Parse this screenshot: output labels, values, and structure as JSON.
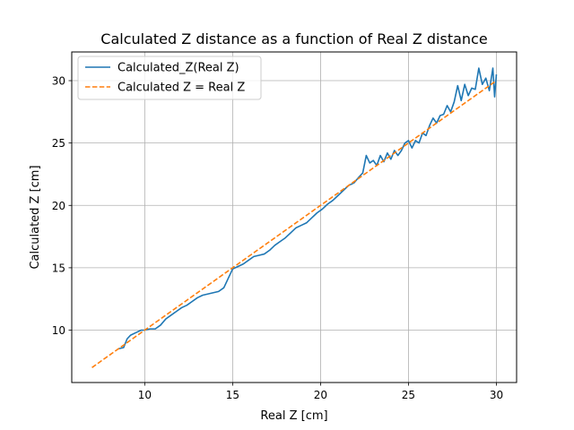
{
  "chart_data": {
    "type": "line",
    "title": "Calculated Z distance as a function of Real Z distance",
    "xlabel": "Real Z [cm]",
    "ylabel": "Calculated Z [cm]",
    "xlim": [
      5.85,
      31.15
    ],
    "ylim": [
      5.8,
      32.3
    ],
    "xticks": [
      10,
      15,
      20,
      25,
      30
    ],
    "yticks": [
      10,
      15,
      20,
      25,
      30
    ],
    "grid": true,
    "legend_position": "upper-left",
    "series": [
      {
        "name": "Calculated_Z(Real Z)",
        "color": "#1f77b4",
        "style": "solid",
        "points": [
          [
            8.5,
            8.5
          ],
          [
            8.8,
            8.6
          ],
          [
            9.0,
            9.3
          ],
          [
            9.2,
            9.6
          ],
          [
            9.5,
            9.8
          ],
          [
            9.8,
            10.0
          ],
          [
            10.0,
            10.0
          ],
          [
            10.3,
            10.1
          ],
          [
            10.6,
            10.1
          ],
          [
            10.9,
            10.4
          ],
          [
            11.2,
            10.9
          ],
          [
            11.5,
            11.2
          ],
          [
            11.8,
            11.5
          ],
          [
            12.1,
            11.8
          ],
          [
            12.4,
            12.0
          ],
          [
            12.7,
            12.3
          ],
          [
            13.0,
            12.6
          ],
          [
            13.3,
            12.8
          ],
          [
            13.6,
            12.9
          ],
          [
            13.9,
            13.0
          ],
          [
            14.2,
            13.1
          ],
          [
            14.5,
            13.4
          ],
          [
            14.7,
            14.0
          ],
          [
            14.9,
            14.6
          ],
          [
            15.0,
            14.9
          ],
          [
            15.3,
            15.1
          ],
          [
            15.6,
            15.3
          ],
          [
            15.9,
            15.6
          ],
          [
            16.2,
            15.9
          ],
          [
            16.5,
            16.0
          ],
          [
            16.8,
            16.1
          ],
          [
            17.1,
            16.4
          ],
          [
            17.4,
            16.8
          ],
          [
            17.7,
            17.1
          ],
          [
            18.0,
            17.4
          ],
          [
            18.3,
            17.8
          ],
          [
            18.6,
            18.2
          ],
          [
            18.9,
            18.4
          ],
          [
            19.2,
            18.6
          ],
          [
            19.5,
            19.0
          ],
          [
            19.8,
            19.4
          ],
          [
            20.1,
            19.7
          ],
          [
            20.4,
            20.1
          ],
          [
            20.7,
            20.4
          ],
          [
            21.0,
            20.8
          ],
          [
            21.3,
            21.2
          ],
          [
            21.6,
            21.6
          ],
          [
            21.9,
            21.8
          ],
          [
            22.2,
            22.3
          ],
          [
            22.4,
            22.6
          ],
          [
            22.6,
            24.0
          ],
          [
            22.8,
            23.4
          ],
          [
            23.0,
            23.6
          ],
          [
            23.2,
            23.2
          ],
          [
            23.4,
            24.0
          ],
          [
            23.6,
            23.5
          ],
          [
            23.8,
            24.2
          ],
          [
            24.0,
            23.7
          ],
          [
            24.2,
            24.4
          ],
          [
            24.4,
            24.0
          ],
          [
            24.6,
            24.4
          ],
          [
            24.8,
            25.0
          ],
          [
            25.0,
            25.2
          ],
          [
            25.2,
            24.6
          ],
          [
            25.4,
            25.2
          ],
          [
            25.6,
            25.0
          ],
          [
            25.8,
            25.8
          ],
          [
            26.0,
            25.6
          ],
          [
            26.2,
            26.4
          ],
          [
            26.4,
            27.0
          ],
          [
            26.6,
            26.6
          ],
          [
            26.8,
            27.2
          ],
          [
            27.0,
            27.3
          ],
          [
            27.2,
            28.0
          ],
          [
            27.4,
            27.5
          ],
          [
            27.6,
            28.3
          ],
          [
            27.8,
            29.6
          ],
          [
            28.0,
            28.4
          ],
          [
            28.2,
            29.7
          ],
          [
            28.4,
            28.8
          ],
          [
            28.6,
            29.4
          ],
          [
            28.8,
            29.3
          ],
          [
            29.0,
            31.0
          ],
          [
            29.2,
            29.7
          ],
          [
            29.4,
            30.2
          ],
          [
            29.6,
            29.2
          ],
          [
            29.8,
            31.0
          ],
          [
            29.9,
            28.7
          ],
          [
            30.0,
            30.5
          ]
        ]
      },
      {
        "name": "Calculated Z = Real Z",
        "color": "#ff7f0e",
        "style": "dashed",
        "points": [
          [
            7.0,
            7.0
          ],
          [
            30.0,
            30.0
          ]
        ]
      }
    ]
  }
}
